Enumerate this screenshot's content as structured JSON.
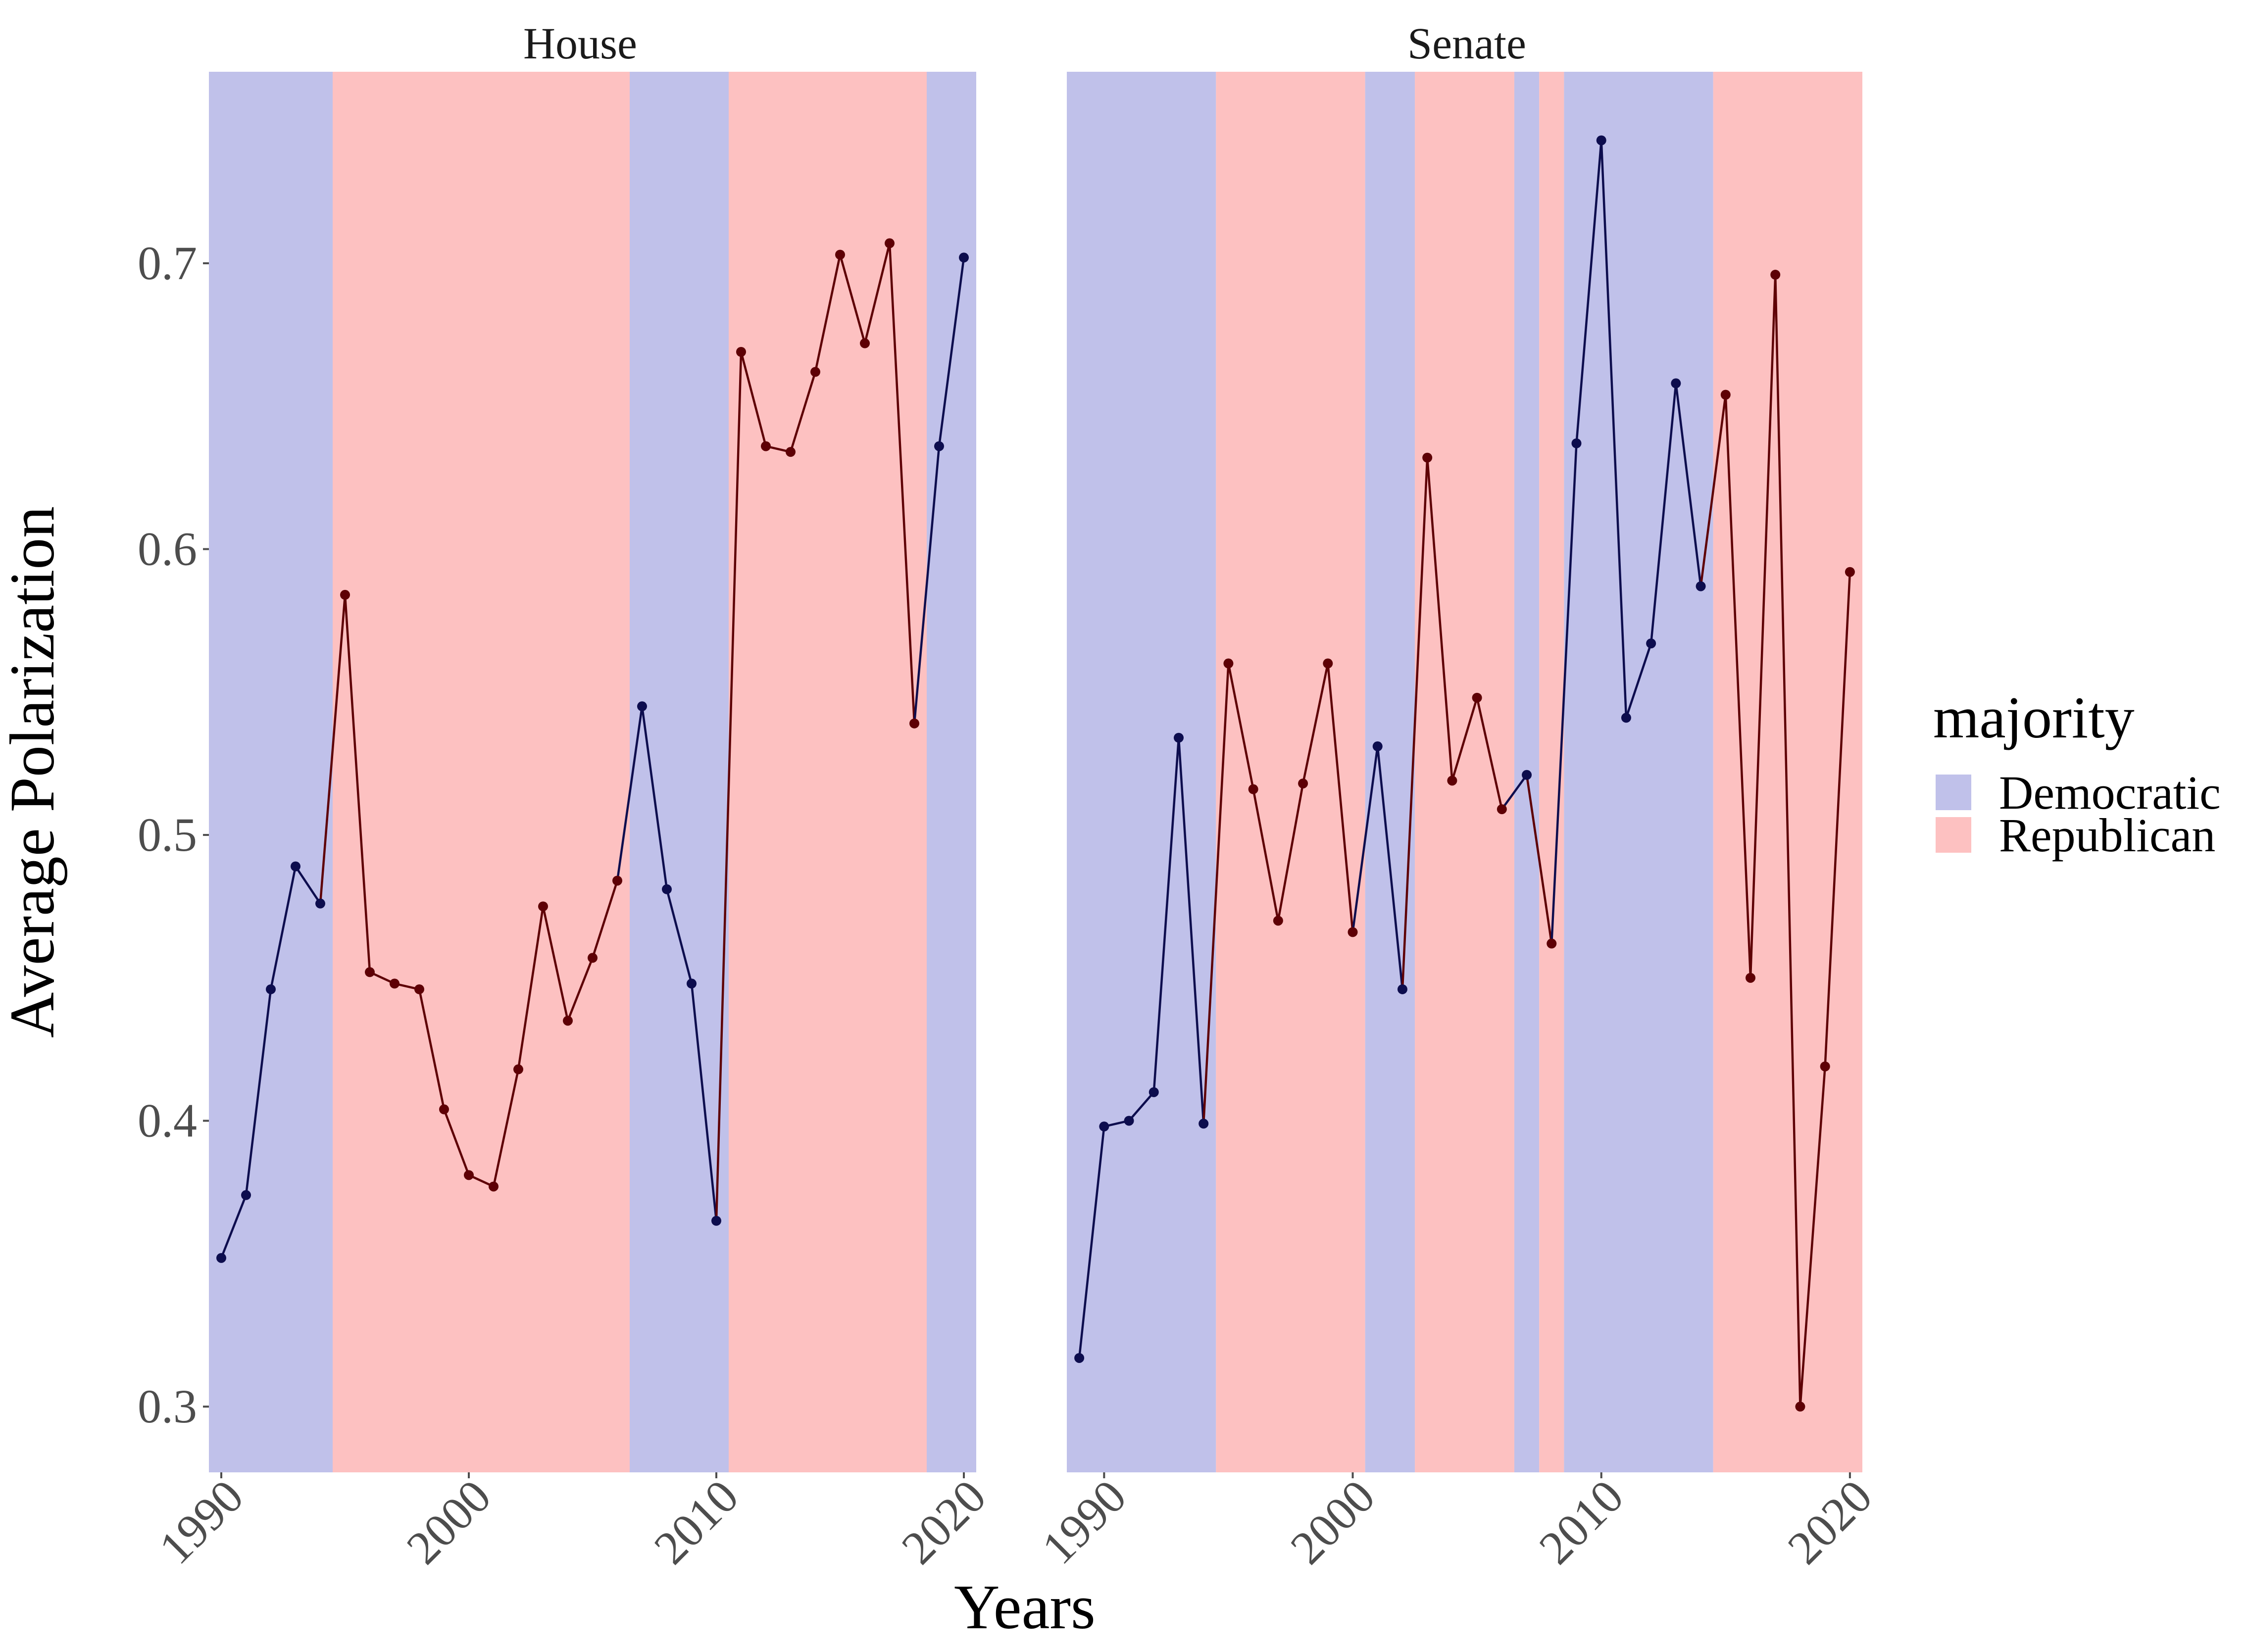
{
  "chart_data": {
    "type": "line",
    "xlabel": "Years",
    "ylabel": "Average Polarization",
    "x_ticks": [
      1990,
      2000,
      2010,
      2020
    ],
    "y_ticks": [
      "0.3",
      "0.4",
      "0.5",
      "0.6",
      "0.7"
    ],
    "ylim": [
      0.277,
      0.767
    ],
    "legend": {
      "title": "majority",
      "position": "right",
      "entries": [
        {
          "label": "Democratic",
          "fill": "#c0c1ea",
          "line": "#0d0d4e"
        },
        {
          "label": "Republican",
          "fill": "#fdc1c1",
          "line": "#5e0005"
        }
      ]
    },
    "panels": [
      {
        "strip": "House",
        "xlim": [
          1989.5,
          2020.5
        ],
        "majority_periods": [
          {
            "start": 1989.5,
            "end": 1994.5,
            "majority": "Democratic"
          },
          {
            "start": 1994.5,
            "end": 2006.5,
            "majority": "Republican"
          },
          {
            "start": 2006.5,
            "end": 2010.5,
            "majority": "Democratic"
          },
          {
            "start": 2010.5,
            "end": 2018.5,
            "majority": "Republican"
          },
          {
            "start": 2018.5,
            "end": 2020.5,
            "majority": "Democratic"
          }
        ],
        "points": [
          {
            "year": 1990,
            "value": 0.352,
            "majority": "Democratic"
          },
          {
            "year": 1991,
            "value": 0.374,
            "majority": "Democratic"
          },
          {
            "year": 1992,
            "value": 0.446,
            "majority": "Democratic"
          },
          {
            "year": 1993,
            "value": 0.489,
            "majority": "Democratic"
          },
          {
            "year": 1994,
            "value": 0.476,
            "majority": "Democratic"
          },
          {
            "year": 1995,
            "value": 0.584,
            "majority": "Republican"
          },
          {
            "year": 1996,
            "value": 0.452,
            "majority": "Republican"
          },
          {
            "year": 1997,
            "value": 0.448,
            "majority": "Republican"
          },
          {
            "year": 1998,
            "value": 0.446,
            "majority": "Republican"
          },
          {
            "year": 1999,
            "value": 0.404,
            "majority": "Republican"
          },
          {
            "year": 2000,
            "value": 0.381,
            "majority": "Republican"
          },
          {
            "year": 2001,
            "value": 0.377,
            "majority": "Republican"
          },
          {
            "year": 2002,
            "value": 0.418,
            "majority": "Republican"
          },
          {
            "year": 2003,
            "value": 0.475,
            "majority": "Republican"
          },
          {
            "year": 2004,
            "value": 0.435,
            "majority": "Republican"
          },
          {
            "year": 2005,
            "value": 0.457,
            "majority": "Republican"
          },
          {
            "year": 2006,
            "value": 0.484,
            "majority": "Republican"
          },
          {
            "year": 2007,
            "value": 0.545,
            "majority": "Democratic"
          },
          {
            "year": 2008,
            "value": 0.481,
            "majority": "Democratic"
          },
          {
            "year": 2009,
            "value": 0.448,
            "majority": "Democratic"
          },
          {
            "year": 2010,
            "value": 0.365,
            "majority": "Democratic"
          },
          {
            "year": 2011,
            "value": 0.669,
            "majority": "Republican"
          },
          {
            "year": 2012,
            "value": 0.636,
            "majority": "Republican"
          },
          {
            "year": 2013,
            "value": 0.634,
            "majority": "Republican"
          },
          {
            "year": 2014,
            "value": 0.662,
            "majority": "Republican"
          },
          {
            "year": 2015,
            "value": 0.703,
            "majority": "Republican"
          },
          {
            "year": 2016,
            "value": 0.672,
            "majority": "Republican"
          },
          {
            "year": 2017,
            "value": 0.707,
            "majority": "Republican"
          },
          {
            "year": 2018,
            "value": 0.539,
            "majority": "Republican"
          },
          {
            "year": 2019,
            "value": 0.636,
            "majority": "Democratic"
          },
          {
            "year": 2020,
            "value": 0.702,
            "majority": "Democratic"
          }
        ]
      },
      {
        "strip": "Senate",
        "xlim": [
          1988.5,
          2020.5
        ],
        "majority_periods": [
          {
            "start": 1988.5,
            "end": 1994.5,
            "majority": "Democratic"
          },
          {
            "start": 1994.5,
            "end": 2000.5,
            "majority": "Republican"
          },
          {
            "start": 2000.5,
            "end": 2002.5,
            "majority": "Democratic"
          },
          {
            "start": 2002.5,
            "end": 2006.5,
            "majority": "Republican"
          },
          {
            "start": 2006.5,
            "end": 2007.5,
            "majority": "Democratic"
          },
          {
            "start": 2007.5,
            "end": 2008.5,
            "majority": "Republican"
          },
          {
            "start": 2008.5,
            "end": 2014.5,
            "majority": "Democratic"
          },
          {
            "start": 2014.5,
            "end": 2020.5,
            "majority": "Republican"
          }
        ],
        "points": [
          {
            "year": 1989,
            "value": 0.317,
            "majority": "Democratic"
          },
          {
            "year": 1990,
            "value": 0.398,
            "majority": "Democratic"
          },
          {
            "year": 1991,
            "value": 0.4,
            "majority": "Democratic"
          },
          {
            "year": 1992,
            "value": 0.41,
            "majority": "Democratic"
          },
          {
            "year": 1993,
            "value": 0.534,
            "majority": "Democratic"
          },
          {
            "year": 1994,
            "value": 0.399,
            "majority": "Democratic"
          },
          {
            "year": 1995,
            "value": 0.56,
            "majority": "Republican"
          },
          {
            "year": 1996,
            "value": 0.516,
            "majority": "Republican"
          },
          {
            "year": 1997,
            "value": 0.47,
            "majority": "Republican"
          },
          {
            "year": 1998,
            "value": 0.518,
            "majority": "Republican"
          },
          {
            "year": 1999,
            "value": 0.56,
            "majority": "Republican"
          },
          {
            "year": 2000,
            "value": 0.466,
            "majority": "Republican"
          },
          {
            "year": 2001,
            "value": 0.531,
            "majority": "Democratic"
          },
          {
            "year": 2002,
            "value": 0.446,
            "majority": "Democratic"
          },
          {
            "year": 2003,
            "value": 0.632,
            "majority": "Republican"
          },
          {
            "year": 2004,
            "value": 0.519,
            "majority": "Republican"
          },
          {
            "year": 2005,
            "value": 0.548,
            "majority": "Republican"
          },
          {
            "year": 2006,
            "value": 0.509,
            "majority": "Republican"
          },
          {
            "year": 2007,
            "value": 0.521,
            "majority": "Democratic"
          },
          {
            "year": 2008,
            "value": 0.462,
            "majority": "Republican"
          },
          {
            "year": 2009,
            "value": 0.637,
            "majority": "Democratic"
          },
          {
            "year": 2010,
            "value": 0.743,
            "majority": "Democratic"
          },
          {
            "year": 2011,
            "value": 0.541,
            "majority": "Democratic"
          },
          {
            "year": 2012,
            "value": 0.567,
            "majority": "Democratic"
          },
          {
            "year": 2013,
            "value": 0.658,
            "majority": "Democratic"
          },
          {
            "year": 2014,
            "value": 0.587,
            "majority": "Democratic"
          },
          {
            "year": 2015,
            "value": 0.654,
            "majority": "Republican"
          },
          {
            "year": 2016,
            "value": 0.45,
            "majority": "Republican"
          },
          {
            "year": 2017,
            "value": 0.696,
            "majority": "Republican"
          },
          {
            "year": 2018,
            "value": 0.3,
            "majority": "Republican"
          },
          {
            "year": 2019,
            "value": 0.419,
            "majority": "Republican"
          },
          {
            "year": 2020,
            "value": 0.592,
            "majority": "Republican"
          }
        ]
      }
    ]
  }
}
